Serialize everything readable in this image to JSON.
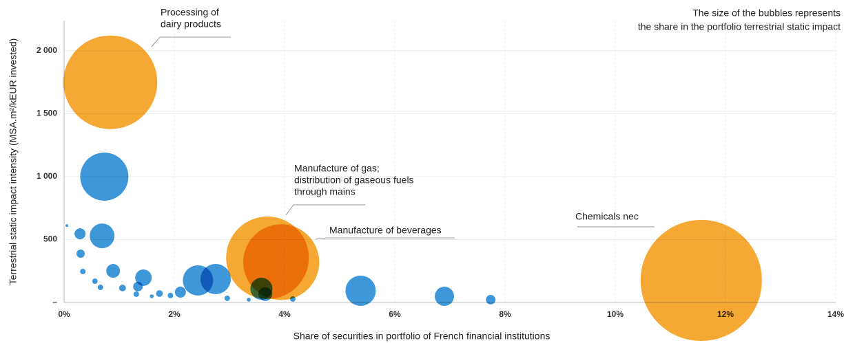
{
  "chart_data": {
    "type": "bubble",
    "x_label": "Share of securities in portfolio of French financial institutions",
    "y_label": "Terrestrial static impact intensity (MSA.m²/kEUR invested)",
    "note": [
      "The size of the bubbles represents",
      "the share in the portfolio terrestrial static impact"
    ],
    "xlim": [
      0,
      14
    ],
    "xticks": [
      {
        "value": 0,
        "label": "0%"
      },
      {
        "value": 2,
        "label": "2%"
      },
      {
        "value": 4,
        "label": "4%"
      },
      {
        "value": 6,
        "label": "6%"
      },
      {
        "value": 8,
        "label": "8%"
      },
      {
        "value": 10,
        "label": "10%"
      },
      {
        "value": 12,
        "label": "12%"
      },
      {
        "value": 14,
        "label": "14%"
      }
    ],
    "ylim": [
      0,
      2240
    ],
    "yticks": [
      {
        "value": 0,
        "label": "–"
      },
      500,
      {
        "value": 1000,
        "label": "1 000"
      },
      {
        "value": 1500,
        "label": "1 500"
      },
      {
        "value": 2000,
        "label": "2 000"
      }
    ],
    "grid": true,
    "series": [
      {
        "color": "#3e97d9",
        "x": [
          0.73,
          0.69,
          0.29,
          0.3,
          0.89,
          0.34,
          1.44,
          1.34,
          1.06,
          0.56,
          0.66,
          1.31,
          2.43,
          2.75,
          2.11,
          1.73,
          1.93,
          1.59,
          2.96,
          3.35,
          3.58,
          3.65,
          5.38,
          6.9,
          7.74,
          4.15,
          0.05
        ],
        "values": [
          1000,
          529,
          546,
          388,
          251,
          246,
          197,
          126,
          115,
          169,
          120,
          66,
          175,
          186,
          82,
          71,
          55,
          49,
          33,
          22,
          109,
          66,
          93,
          49,
          22,
          27,
          611
        ],
        "size": [
          3.06,
          0.81,
          0.16,
          0.09,
          0.25,
          0.04,
          0.36,
          0.12,
          0.06,
          0.04,
          0.04,
          0.04,
          1.21,
          1.21,
          0.16,
          0.06,
          0.04,
          0.02,
          0.04,
          0.02,
          0.64,
          0.25,
          1.21,
          0.49,
          0.12,
          0.04,
          0.01
        ]
      },
      {
        "color": "#f5a833",
        "x": [
          0.84,
          3.69,
          3.94,
          11.56
        ],
        "values": [
          1750,
          355,
          320,
          175
        ],
        "size": [
          11.6,
          9.0,
          7.6,
          19.4
        ]
      }
    ],
    "annotations": [
      [
        "Processing of",
        "dairy products"
      ],
      [
        "Manufacture of gas;",
        "distribution of gaseous fuels",
        "through mains"
      ],
      [
        "Manufacture of beverages"
      ],
      [
        "Chemicals nec"
      ]
    ]
  }
}
